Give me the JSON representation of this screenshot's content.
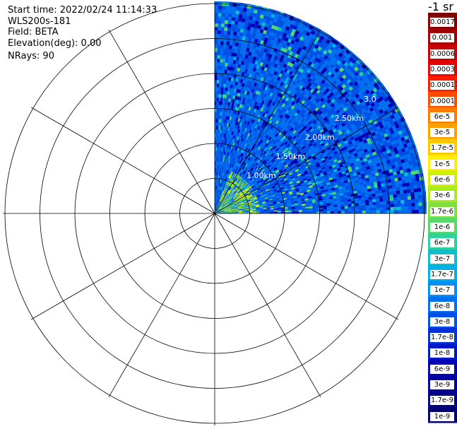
{
  "header": {
    "start_time": "Start time: 2022/02/24 11:14:33",
    "instrument": "WLS200s-181",
    "field": "Field: BETA",
    "elevation": "Elevation(deg): 0.00",
    "nrays": "NRays: 90"
  },
  "colorbar": {
    "unit_label": "-1 sr",
    "labels": [
      "0.0017",
      "0.001",
      "0.0006",
      "0.0003",
      "0.00017",
      "0.0001",
      "6e-5",
      "3e-5",
      "1.7e-5",
      "1e-5",
      "6e-6",
      "3e-6",
      "1.7e-6",
      "1e-6",
      "6e-7",
      "3e-7",
      "1.7e-7",
      "1e-7",
      "6e-8",
      "3e-8",
      "1.7e-8",
      "1e-8",
      "6e-9",
      "3e-9",
      "1.7e-9",
      "1e-9"
    ],
    "colors": [
      "#800000",
      "#a00000",
      "#c80000",
      "#e60000",
      "#ff1a00",
      "#ff4a00",
      "#ff7a00",
      "#ffa000",
      "#ffc800",
      "#ffee00",
      "#d0f000",
      "#a8ec18",
      "#80e040",
      "#58d868",
      "#30d098",
      "#10c0c8",
      "#00b0e8",
      "#0090f8",
      "#0070f0",
      "#0050e8",
      "#0030d8",
      "#0018c8",
      "#0000b8",
      "#0000a0",
      "#000088",
      "#000070"
    ]
  },
  "chart_data": {
    "type": "polar-heatmap",
    "field": "BETA",
    "azimuth_coverage_deg": [
      0,
      90
    ],
    "nrays": 90,
    "range_rings_km": [
      "1.00km",
      "1.50km",
      "2.00km",
      "2.50km",
      "3.0"
    ],
    "max_range_km": 3.1,
    "dominant_value": "1.7e-8",
    "near_range_values": [
      "1.7e-6",
      "1e-5",
      "3e-6",
      "6e-6"
    ],
    "colorscale": "log"
  }
}
